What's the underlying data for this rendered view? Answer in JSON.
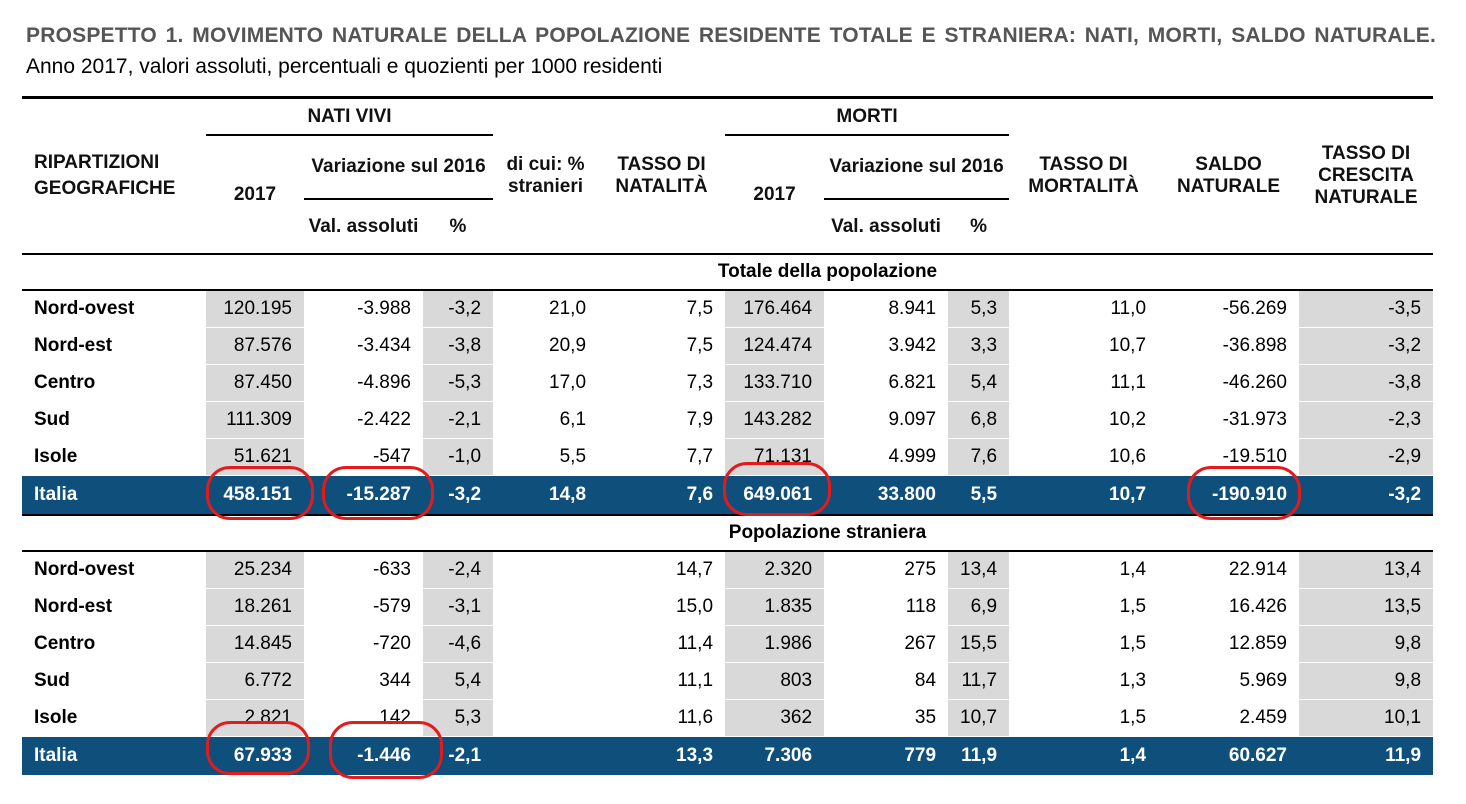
{
  "title": {
    "bold": "PROSPETTO 1. MOVIMENTO NATURALE DELLA POPOLAZIONE RESIDENTE TOTALE E STRANIERA: NATI, MORTI, SALDO NATURALE.",
    "subtitle": "Anno 2017, valori assoluti, percentuali e quozienti per 1000 residenti"
  },
  "header": {
    "ripartizioni": "RIPARTIZIONI GEOGRAFICHE",
    "nati_vivi": "NATI VIVI",
    "morti": "MORTI",
    "y2017": "2017",
    "variazione": "Variazione sul 2016",
    "val_assoluti": "Val. assoluti",
    "pct": "%",
    "di_cui": "di cui: % stranieri",
    "tasso_natalita": "TASSO DI NATALITÀ",
    "tasso_mortalita": "TASSO DI MORTALITÀ",
    "saldo": "SALDO NATURALE",
    "tasso_crescita": "TASSO DI CRESCITA NATURALE"
  },
  "sections": [
    {
      "label": "Totale della popolazione",
      "rows": [
        [
          "Nord-ovest",
          "120.195",
          "-3.988",
          "-3,2",
          "21,0",
          "7,5",
          "176.464",
          "8.941",
          "5,3",
          "11,0",
          "-56.269",
          "-3,5"
        ],
        [
          "Nord-est",
          "87.576",
          "-3.434",
          "-3,8",
          "20,9",
          "7,5",
          "124.474",
          "3.942",
          "3,3",
          "10,7",
          "-36.898",
          "-3,2"
        ],
        [
          "Centro",
          "87.450",
          "-4.896",
          "-5,3",
          "17,0",
          "7,3",
          "133.710",
          "6.821",
          "5,4",
          "11,1",
          "-46.260",
          "-3,8"
        ],
        [
          "Sud",
          "111.309",
          "-2.422",
          "-2,1",
          "6,1",
          "7,9",
          "143.282",
          "9.097",
          "6,8",
          "10,2",
          "-31.973",
          "-2,3"
        ],
        [
          "Isole",
          "51.621",
          "-547",
          "-1,0",
          "5,5",
          "7,7",
          "71.131",
          "4.999",
          "7,6",
          "10,6",
          "-19.510",
          "-2,9"
        ]
      ],
      "total": [
        "Italia",
        "458.151",
        "-15.287",
        "-3,2",
        "14,8",
        "7,6",
        "649.061",
        "33.800",
        "5,5",
        "10,7",
        "-190.910",
        "-3,2"
      ]
    },
    {
      "label": "Popolazione straniera",
      "rows": [
        [
          "Nord-ovest",
          "25.234",
          "-633",
          "-2,4",
          "",
          "14,7",
          "2.320",
          "275",
          "13,4",
          "1,4",
          "22.914",
          "13,4"
        ],
        [
          "Nord-est",
          "18.261",
          "-579",
          "-3,1",
          "",
          "15,0",
          "1.835",
          "118",
          "6,9",
          "1,5",
          "16.426",
          "13,5"
        ],
        [
          "Centro",
          "14.845",
          "-720",
          "-4,6",
          "",
          "11,4",
          "1.986",
          "267",
          "15,5",
          "1,5",
          "12.859",
          "9,8"
        ],
        [
          "Sud",
          "6.772",
          "344",
          "5,4",
          "",
          "11,1",
          "803",
          "84",
          "11,7",
          "1,3",
          "5.969",
          "9,8"
        ],
        [
          "Isole",
          "2.821",
          "142",
          "5,3",
          "",
          "11,6",
          "362",
          "35",
          "10,7",
          "1,5",
          "2.459",
          "10,1"
        ]
      ],
      "total": [
        "Italia",
        "67.933",
        "-1.446",
        "-2,1",
        "",
        "13,3",
        "7.306",
        "779",
        "11,9",
        "1,4",
        "60.627",
        "11,9"
      ]
    }
  ]
}
